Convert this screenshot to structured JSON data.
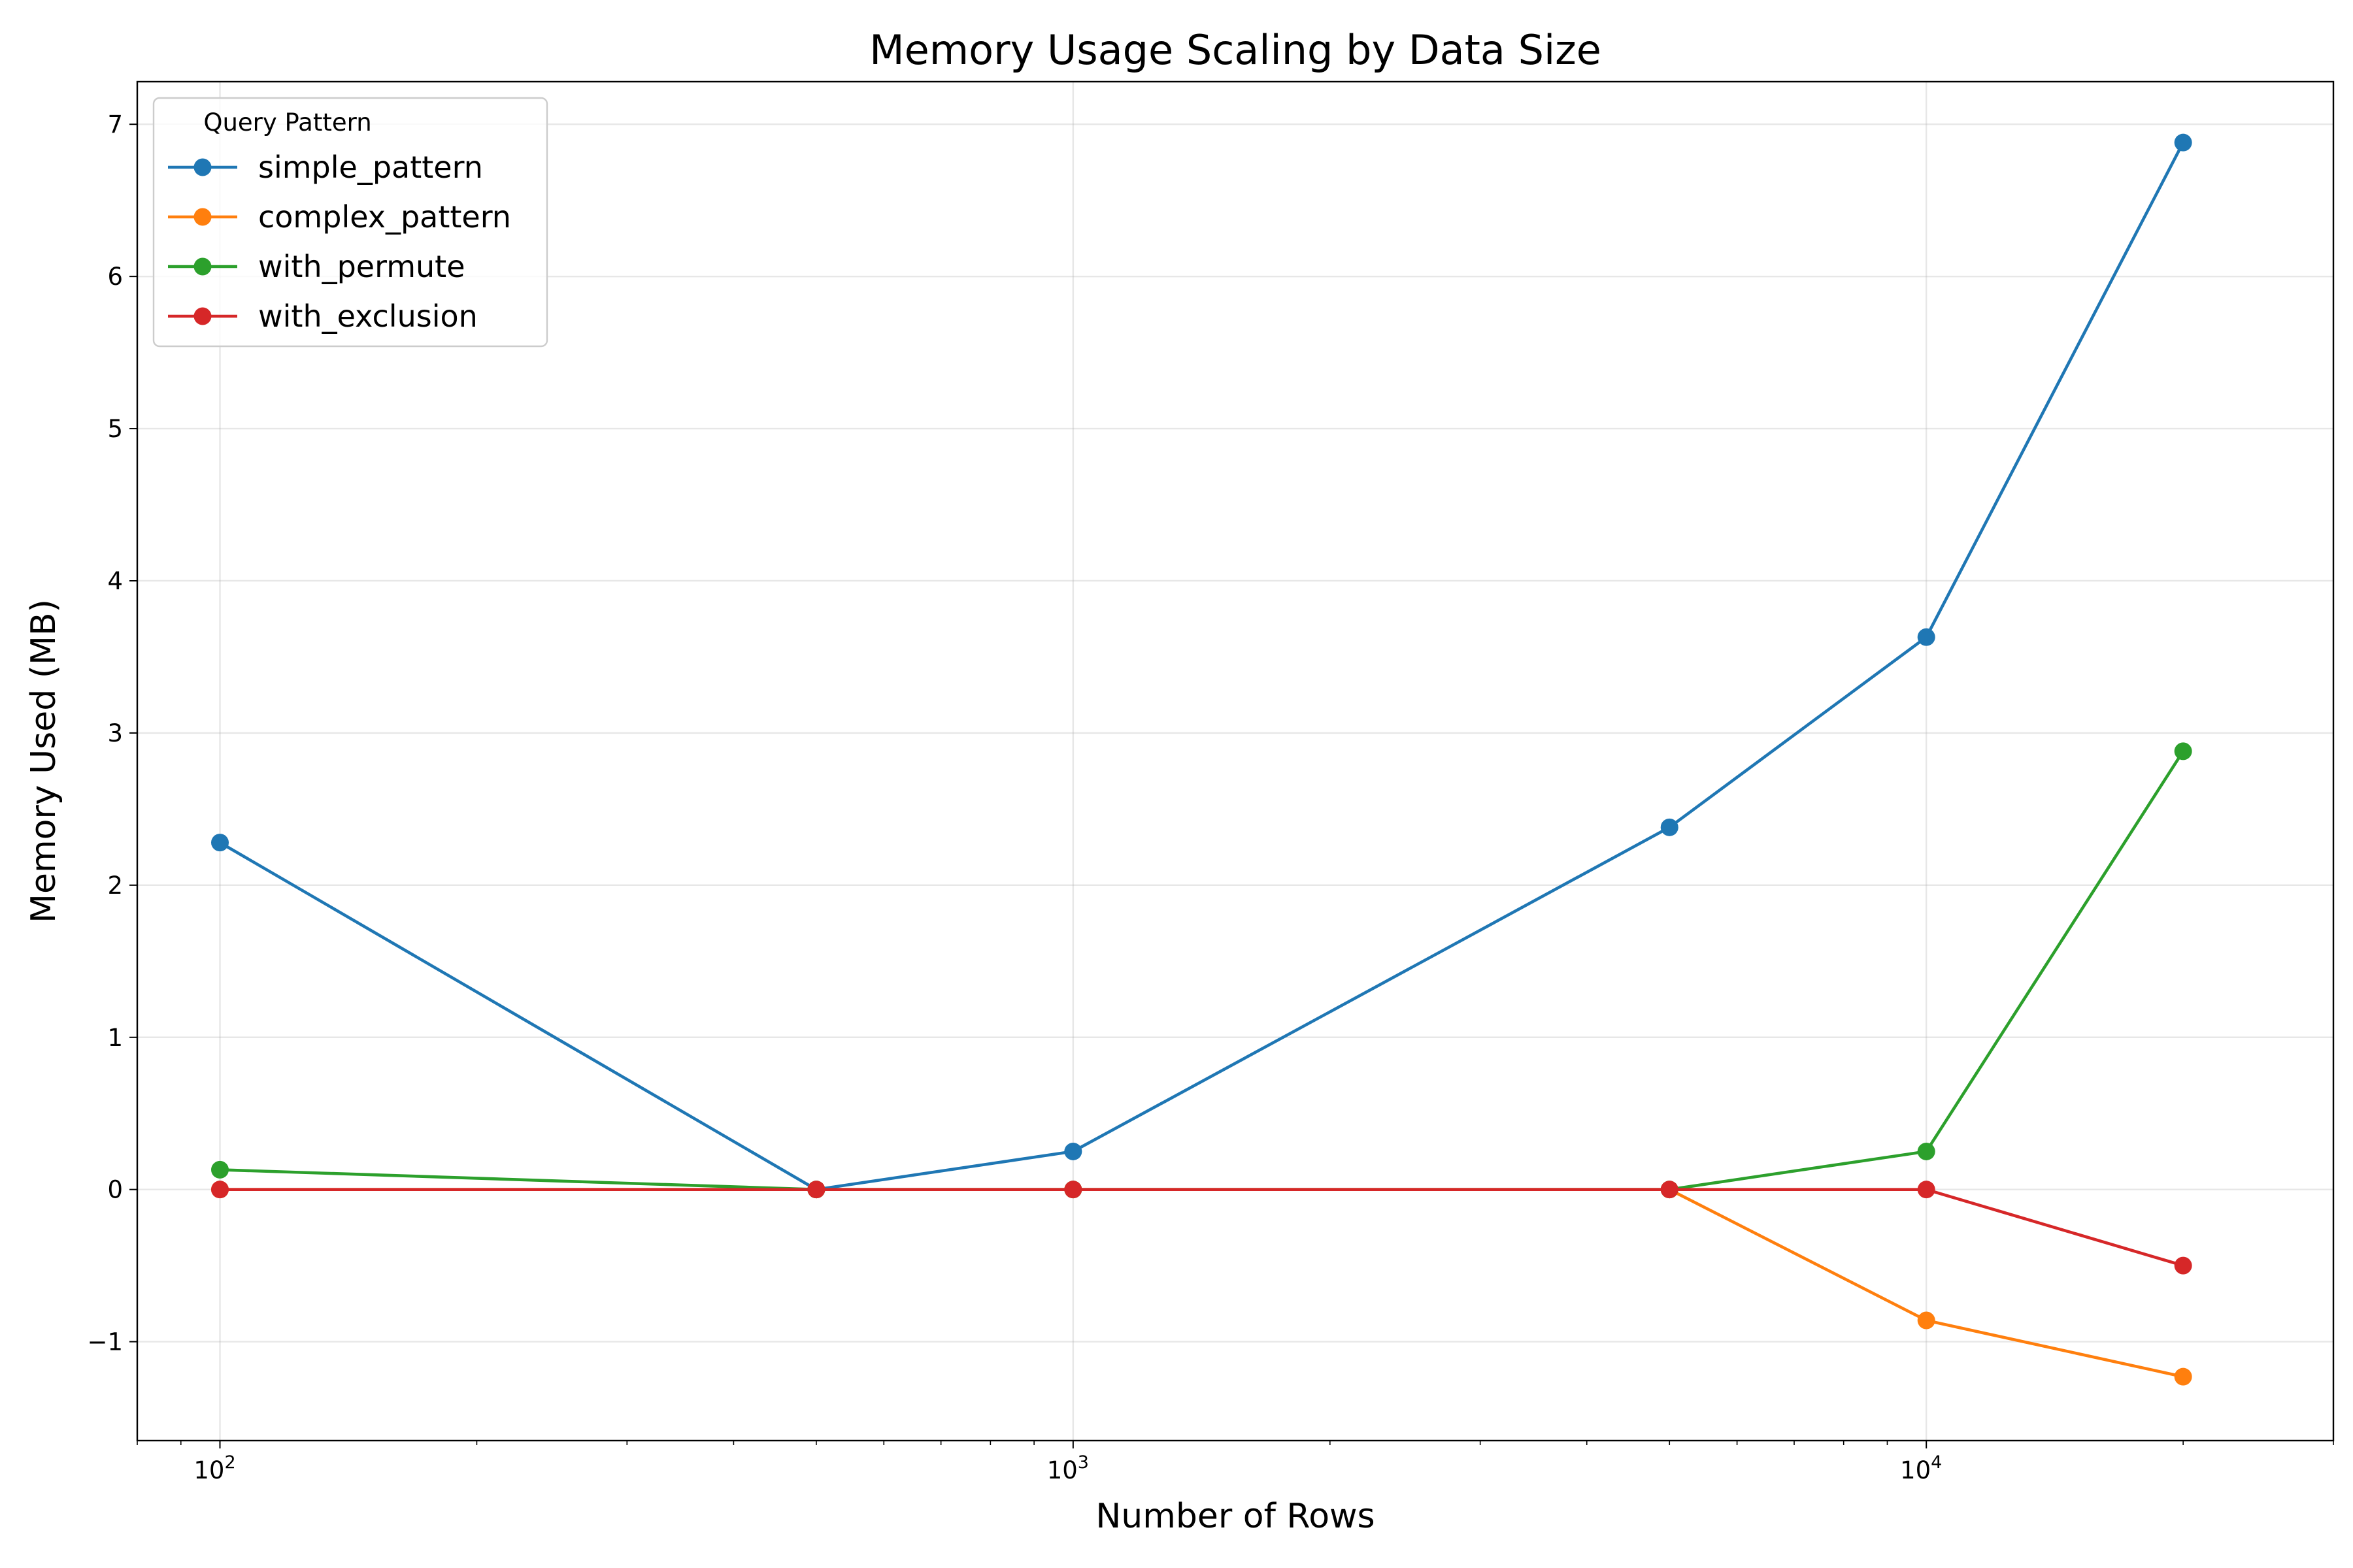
{
  "chart_data": {
    "type": "line",
    "title": "Memory Usage Scaling by Data Size",
    "xlabel": "Number of Rows",
    "ylabel": "Memory Used (MB)",
    "xscale": "log",
    "xlim": [
      80,
      30000
    ],
    "ylim": [
      -1.65,
      7.28
    ],
    "x": [
      100,
      500,
      1000,
      5000,
      10000,
      20000
    ],
    "xticks": [
      {
        "value": 100,
        "base": "10",
        "exp": "2"
      },
      {
        "value": 1000,
        "base": "10",
        "exp": "3"
      },
      {
        "value": 10000,
        "base": "10",
        "exp": "4"
      }
    ],
    "yticks": [
      {
        "value": -1,
        "label": "−1"
      },
      {
        "value": 0,
        "label": "0"
      },
      {
        "value": 1,
        "label": "1"
      },
      {
        "value": 2,
        "label": "2"
      },
      {
        "value": 3,
        "label": "3"
      },
      {
        "value": 4,
        "label": "4"
      },
      {
        "value": 5,
        "label": "5"
      },
      {
        "value": 6,
        "label": "6"
      },
      {
        "value": 7,
        "label": "7"
      }
    ],
    "grid": true,
    "legend": {
      "title": "Query Pattern",
      "position": "top-left"
    },
    "series": [
      {
        "name": "simple_pattern",
        "color": "#1f77b4",
        "values": [
          2.28,
          0.0,
          0.25,
          2.38,
          3.63,
          6.88
        ]
      },
      {
        "name": "complex_pattern",
        "color": "#ff7f0e",
        "values": [
          0.0,
          0.0,
          0.0,
          0.0,
          -0.86,
          -1.23
        ]
      },
      {
        "name": "with_permute",
        "color": "#2ca02c",
        "values": [
          0.13,
          0.0,
          0.0,
          0.0,
          0.25,
          2.88
        ]
      },
      {
        "name": "with_exclusion",
        "color": "#d62728",
        "values": [
          0.0,
          0.0,
          0.0,
          0.0,
          0.0,
          -0.5
        ]
      }
    ]
  }
}
